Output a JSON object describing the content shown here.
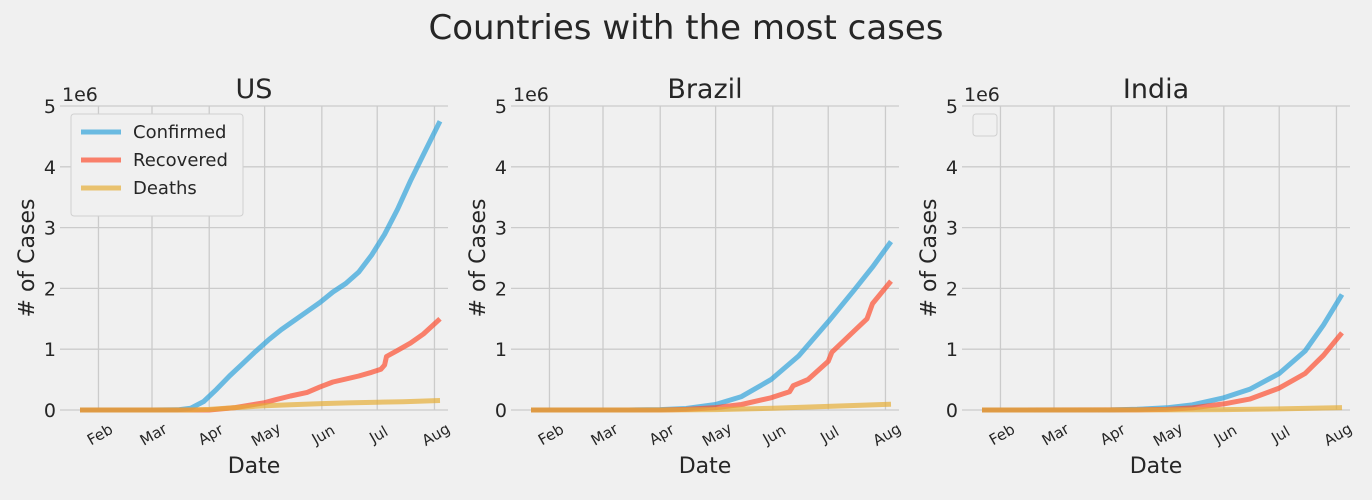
{
  "figure": {
    "title": "Countries with the most cases",
    "background": "#f0f0f0",
    "grid_color": "#cbcbcb"
  },
  "chart_data": [
    {
      "type": "line",
      "title": "US",
      "xlabel": "Date",
      "ylabel": "# of Cases",
      "y_scale_label": "1e6",
      "x_ticks": [
        "Feb",
        "Mar",
        "Apr",
        "May",
        "Jun",
        "Jul",
        "Aug"
      ],
      "y_ticks": [
        "0",
        "1",
        "2",
        "3",
        "4",
        "5"
      ],
      "xlim": [
        "2020-01-22",
        "2020-08-04"
      ],
      "ylim": [
        0,
        5
      ],
      "grid": true,
      "legend": {
        "position": "upper-left",
        "entries": [
          "Confirmed",
          "Recovered",
          "Deaths"
        ]
      },
      "series": [
        {
          "name": "Confirmed",
          "color": "#30a2da",
          "points": [
            [
              "2020-01-22",
              0
            ],
            [
              "2020-03-01",
              0
            ],
            [
              "2020-03-15",
              0.003
            ],
            [
              "2020-03-22",
              0.03
            ],
            [
              "2020-03-29",
              0.14
            ],
            [
              "2020-04-05",
              0.34
            ],
            [
              "2020-04-12",
              0.56
            ],
            [
              "2020-04-19",
              0.76
            ],
            [
              "2020-04-26",
              0.96
            ],
            [
              "2020-05-03",
              1.15
            ],
            [
              "2020-05-10",
              1.32
            ],
            [
              "2020-05-17",
              1.47
            ],
            [
              "2020-05-24",
              1.62
            ],
            [
              "2020-05-31",
              1.77
            ],
            [
              "2020-06-07",
              1.94
            ],
            [
              "2020-06-14",
              2.08
            ],
            [
              "2020-06-21",
              2.27
            ],
            [
              "2020-06-28",
              2.55
            ],
            [
              "2020-07-05",
              2.89
            ],
            [
              "2020-07-12",
              3.3
            ],
            [
              "2020-07-19",
              3.77
            ],
            [
              "2020-07-26",
              4.2
            ],
            [
              "2020-08-04",
              4.75
            ]
          ]
        },
        {
          "name": "Recovered",
          "color": "#fc4f30",
          "points": [
            [
              "2020-01-22",
              0
            ],
            [
              "2020-04-01",
              0
            ],
            [
              "2020-04-15",
              0.04
            ],
            [
              "2020-05-01",
              0.12
            ],
            [
              "2020-05-07",
              0.17
            ],
            [
              "2020-05-15",
              0.23
            ],
            [
              "2020-05-24",
              0.29
            ],
            [
              "2020-05-31",
              0.38
            ],
            [
              "2020-06-07",
              0.46
            ],
            [
              "2020-06-21",
              0.56
            ],
            [
              "2020-06-28",
              0.62
            ],
            [
              "2020-07-03",
              0.67
            ],
            [
              "2020-07-05",
              0.74
            ],
            [
              "2020-07-06",
              0.88
            ],
            [
              "2020-07-12",
              0.98
            ],
            [
              "2020-07-19",
              1.1
            ],
            [
              "2020-07-26",
              1.25
            ],
            [
              "2020-08-04",
              1.5
            ]
          ]
        },
        {
          "name": "Deaths",
          "color": "#e5ae38",
          "points": [
            [
              "2020-01-22",
              0
            ],
            [
              "2020-03-22",
              0.0004
            ],
            [
              "2020-04-01",
              0.01
            ],
            [
              "2020-04-15",
              0.04
            ],
            [
              "2020-05-01",
              0.07
            ],
            [
              "2020-05-15",
              0.087
            ],
            [
              "2020-06-01",
              0.105
            ],
            [
              "2020-06-15",
              0.116
            ],
            [
              "2020-07-01",
              0.128
            ],
            [
              "2020-07-15",
              0.137
            ],
            [
              "2020-08-04",
              0.157
            ]
          ]
        }
      ]
    },
    {
      "type": "line",
      "title": "Brazil",
      "xlabel": "Date",
      "ylabel": "# of Cases",
      "y_scale_label": "1e6",
      "x_ticks": [
        "Feb",
        "Mar",
        "Apr",
        "May",
        "Jun",
        "Jul",
        "Aug"
      ],
      "y_ticks": [
        "0",
        "1",
        "2",
        "3",
        "4",
        "5"
      ],
      "xlim": [
        "2020-01-22",
        "2020-08-04"
      ],
      "ylim": [
        0,
        5
      ],
      "grid": true,
      "series": [
        {
          "name": "Confirmed",
          "color": "#30a2da",
          "points": [
            [
              "2020-01-22",
              0
            ],
            [
              "2020-03-15",
              0
            ],
            [
              "2020-04-01",
              0.007
            ],
            [
              "2020-04-15",
              0.025
            ],
            [
              "2020-05-01",
              0.09
            ],
            [
              "2020-05-15",
              0.22
            ],
            [
              "2020-05-31",
              0.5
            ],
            [
              "2020-06-15",
              0.89
            ],
            [
              "2020-07-01",
              1.45
            ],
            [
              "2020-07-15",
              1.97
            ],
            [
              "2020-07-25",
              2.35
            ],
            [
              "2020-08-04",
              2.77
            ]
          ]
        },
        {
          "name": "Recovered",
          "color": "#fc4f30",
          "points": [
            [
              "2020-01-22",
              0
            ],
            [
              "2020-04-01",
              0
            ],
            [
              "2020-04-15",
              0.01
            ],
            [
              "2020-05-01",
              0.04
            ],
            [
              "2020-05-15",
              0.09
            ],
            [
              "2020-05-31",
              0.2
            ],
            [
              "2020-06-10",
              0.3
            ],
            [
              "2020-06-12",
              0.4
            ],
            [
              "2020-06-20",
              0.5
            ],
            [
              "2020-07-01",
              0.8
            ],
            [
              "2020-07-03",
              0.95
            ],
            [
              "2020-07-15",
              1.3
            ],
            [
              "2020-07-22",
              1.5
            ],
            [
              "2020-07-25",
              1.75
            ],
            [
              "2020-08-04",
              2.12
            ]
          ]
        },
        {
          "name": "Deaths",
          "color": "#e5ae38",
          "points": [
            [
              "2020-01-22",
              0
            ],
            [
              "2020-04-01",
              0.0002
            ],
            [
              "2020-05-01",
              0.006
            ],
            [
              "2020-06-01",
              0.03
            ],
            [
              "2020-07-01",
              0.06
            ],
            [
              "2020-08-04",
              0.095
            ]
          ]
        }
      ]
    },
    {
      "type": "line",
      "title": "India",
      "xlabel": "Date",
      "ylabel": "# of Cases",
      "y_scale_label": "1e6",
      "x_ticks": [
        "Feb",
        "Mar",
        "Apr",
        "May",
        "Jun",
        "Jul",
        "Aug"
      ],
      "y_ticks": [
        "0",
        "1",
        "2",
        "3",
        "4",
        "5"
      ],
      "xlim": [
        "2020-01-22",
        "2020-08-04"
      ],
      "ylim": [
        0,
        5
      ],
      "grid": true,
      "legend": {
        "position": "upper-left",
        "entries": []
      },
      "series": [
        {
          "name": "Confirmed",
          "color": "#30a2da",
          "points": [
            [
              "2020-01-22",
              0
            ],
            [
              "2020-04-01",
              0.002
            ],
            [
              "2020-04-15",
              0.012
            ],
            [
              "2020-05-01",
              0.037
            ],
            [
              "2020-05-15",
              0.085
            ],
            [
              "2020-06-01",
              0.2
            ],
            [
              "2020-06-15",
              0.34
            ],
            [
              "2020-07-01",
              0.6
            ],
            [
              "2020-07-15",
              0.97
            ],
            [
              "2020-07-25",
              1.4
            ],
            [
              "2020-08-04",
              1.9
            ]
          ]
        },
        {
          "name": "Recovered",
          "color": "#fc4f30",
          "points": [
            [
              "2020-01-22",
              0
            ],
            [
              "2020-04-15",
              0.001
            ],
            [
              "2020-05-01",
              0.01
            ],
            [
              "2020-05-15",
              0.035
            ],
            [
              "2020-06-01",
              0.1
            ],
            [
              "2020-06-15",
              0.18
            ],
            [
              "2020-07-01",
              0.36
            ],
            [
              "2020-07-15",
              0.6
            ],
            [
              "2020-07-25",
              0.9
            ],
            [
              "2020-08-04",
              1.27
            ]
          ]
        },
        {
          "name": "Deaths",
          "color": "#e5ae38",
          "points": [
            [
              "2020-01-22",
              0
            ],
            [
              "2020-05-01",
              0.001
            ],
            [
              "2020-06-01",
              0.006
            ],
            [
              "2020-07-01",
              0.018
            ],
            [
              "2020-08-04",
              0.04
            ]
          ]
        }
      ]
    }
  ]
}
